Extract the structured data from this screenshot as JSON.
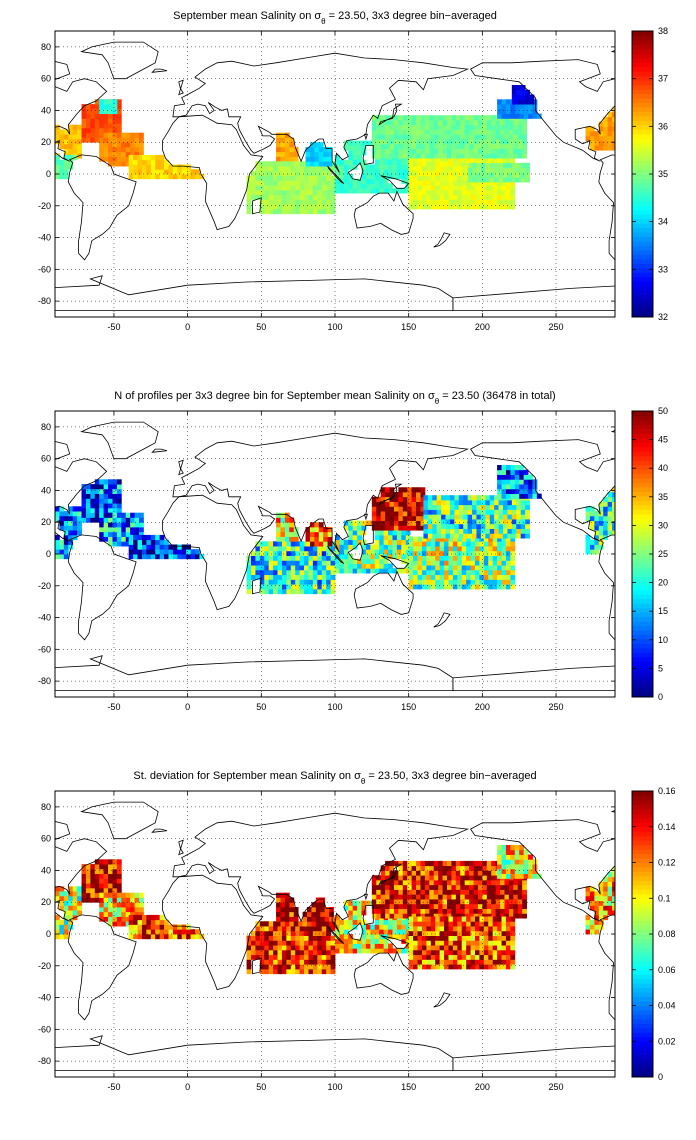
{
  "chart_data": [
    {
      "type": "heatmap",
      "title": "September mean Salinity on σθ = 23.50, 3x3 degree bin−averaged",
      "title_parts": [
        "September mean Salinity on σ",
        "θ",
        " = 23.50, 3x3 degree bin−averaged"
      ],
      "xlim": [
        -90,
        290
      ],
      "ylim": [
        -90,
        90
      ],
      "x_ticks": [
        -50,
        0,
        50,
        100,
        150,
        200,
        250
      ],
      "y_ticks": [
        -80,
        -60,
        -40,
        -20,
        0,
        20,
        40,
        60,
        80
      ],
      "grid": true,
      "colormap": "jet",
      "colorbar": {
        "min": 32,
        "max": 38,
        "ticks": [
          32,
          33,
          34,
          35,
          36,
          37,
          38
        ]
      },
      "regions": [
        {
          "x": [
            -90,
            -72
          ],
          "y": [
            10,
            30
          ],
          "value": 36.1
        },
        {
          "x": [
            -72,
            -45
          ],
          "y": [
            20,
            45
          ],
          "value": 36.8
        },
        {
          "x": [
            -60,
            -30
          ],
          "y": [
            5,
            25
          ],
          "value": 36.5
        },
        {
          "x": [
            -40,
            10
          ],
          "y": [
            -3,
            12
          ],
          "value": 36.0
        },
        {
          "x": [
            -90,
            -72
          ],
          "y": [
            -3,
            10
          ],
          "value": 34.8
        },
        {
          "x": [
            -60,
            -50
          ],
          "y": [
            38,
            46
          ],
          "value": 34.5
        },
        {
          "x": [
            60,
            75
          ],
          "y": [
            8,
            25
          ],
          "value": 36.3
        },
        {
          "x": [
            40,
            100
          ],
          "y": [
            -25,
            8
          ],
          "value": 35.2
        },
        {
          "x": [
            80,
            100
          ],
          "y": [
            5,
            20
          ],
          "value": 34.0
        },
        {
          "x": [
            100,
            150
          ],
          "y": [
            -12,
            20
          ],
          "value": 34.6
        },
        {
          "x": [
            150,
            220
          ],
          "y": [
            -22,
            10
          ],
          "value": 35.6
        },
        {
          "x": [
            125,
            230
          ],
          "y": [
            10,
            35
          ],
          "value": 34.9
        },
        {
          "x": [
            210,
            240
          ],
          "y": [
            35,
            45
          ],
          "value": 33.5
        },
        {
          "x": [
            220,
            240
          ],
          "y": [
            44,
            55
          ],
          "value": 32.6
        },
        {
          "x": [
            190,
            230
          ],
          "y": [
            -5,
            5
          ],
          "value": 35.0
        },
        {
          "x": [
            270,
            290
          ],
          "y": [
            15,
            40
          ],
          "value": 36.3
        }
      ]
    },
    {
      "type": "heatmap",
      "title": "N of profiles per 3x3 degree bin for September mean Salinity on σθ = 23.50 (36478 in total)",
      "title_parts": [
        "N of profiles per 3x3 degree bin for September mean Salinity on σ",
        "θ",
        " = 23.50 (36478 in total)"
      ],
      "xlim": [
        -90,
        290
      ],
      "ylim": [
        -90,
        90
      ],
      "x_ticks": [
        -50,
        0,
        50,
        100,
        150,
        200,
        250
      ],
      "y_ticks": [
        -80,
        -60,
        -40,
        -20,
        0,
        20,
        40,
        60,
        80
      ],
      "grid": true,
      "colormap": "jet",
      "colorbar": {
        "min": 0,
        "max": 50,
        "ticks": [
          0,
          5,
          10,
          15,
          20,
          25,
          30,
          35,
          40,
          45,
          50
        ]
      },
      "regions": [
        {
          "x": [
            -90,
            -72
          ],
          "y": [
            -3,
            30
          ],
          "value": 12
        },
        {
          "x": [
            -72,
            -45
          ],
          "y": [
            20,
            45
          ],
          "value": 10
        },
        {
          "x": [
            -60,
            -30
          ],
          "y": [
            5,
            25
          ],
          "value": 14
        },
        {
          "x": [
            -40,
            10
          ],
          "y": [
            -3,
            12
          ],
          "value": 8
        },
        {
          "x": [
            40,
            100
          ],
          "y": [
            -25,
            8
          ],
          "value": 20
        },
        {
          "x": [
            60,
            75
          ],
          "y": [
            8,
            25
          ],
          "value": 32
        },
        {
          "x": [
            80,
            100
          ],
          "y": [
            5,
            20
          ],
          "value": 40
        },
        {
          "x": [
            100,
            150
          ],
          "y": [
            -12,
            20
          ],
          "value": 24
        },
        {
          "x": [
            125,
            160
          ],
          "y": [
            15,
            40
          ],
          "value": 48
        },
        {
          "x": [
            150,
            220
          ],
          "y": [
            -22,
            10
          ],
          "value": 26
        },
        {
          "x": [
            160,
            230
          ],
          "y": [
            10,
            35
          ],
          "value": 22
        },
        {
          "x": [
            210,
            240
          ],
          "y": [
            35,
            55
          ],
          "value": 12
        },
        {
          "x": [
            270,
            290
          ],
          "y": [
            0,
            40
          ],
          "value": 22
        }
      ]
    },
    {
      "type": "heatmap",
      "title": "St. deviation for September mean Salinity on σθ = 23.50, 3x3 degree bin−averaged",
      "title_parts": [
        "St. deviation for September mean Salinity on σ",
        "θ",
        " = 23.50, 3x3 degree bin−averaged"
      ],
      "xlim": [
        -90,
        290
      ],
      "ylim": [
        -90,
        90
      ],
      "x_ticks": [
        -50,
        0,
        50,
        100,
        150,
        200,
        250
      ],
      "y_ticks": [
        -80,
        -60,
        -40,
        -20,
        0,
        20,
        40,
        60,
        80
      ],
      "grid": true,
      "colormap": "jet",
      "colorbar": {
        "min": 0,
        "max": 0.16,
        "ticks": [
          0,
          0.02,
          0.04,
          0.06,
          0.08,
          0.1,
          0.12,
          0.14,
          0.16
        ]
      },
      "regions": [
        {
          "x": [
            -90,
            -72
          ],
          "y": [
            -3,
            30
          ],
          "value": 0.09
        },
        {
          "x": [
            -72,
            -45
          ],
          "y": [
            20,
            45
          ],
          "value": 0.15
        },
        {
          "x": [
            -60,
            -30
          ],
          "y": [
            5,
            25
          ],
          "value": 0.11
        },
        {
          "x": [
            -40,
            10
          ],
          "y": [
            -3,
            12
          ],
          "value": 0.13
        },
        {
          "x": [
            40,
            100
          ],
          "y": [
            -25,
            8
          ],
          "value": 0.14
        },
        {
          "x": [
            60,
            100
          ],
          "y": [
            5,
            25
          ],
          "value": 0.15
        },
        {
          "x": [
            100,
            150
          ],
          "y": [
            -12,
            20
          ],
          "value": 0.1
        },
        {
          "x": [
            125,
            230
          ],
          "y": [
            10,
            45
          ],
          "value": 0.14
        },
        {
          "x": [
            150,
            220
          ],
          "y": [
            -22,
            10
          ],
          "value": 0.13
        },
        {
          "x": [
            210,
            240
          ],
          "y": [
            35,
            55
          ],
          "value": 0.1
        },
        {
          "x": [
            270,
            290
          ],
          "y": [
            0,
            40
          ],
          "value": 0.11
        }
      ]
    }
  ]
}
